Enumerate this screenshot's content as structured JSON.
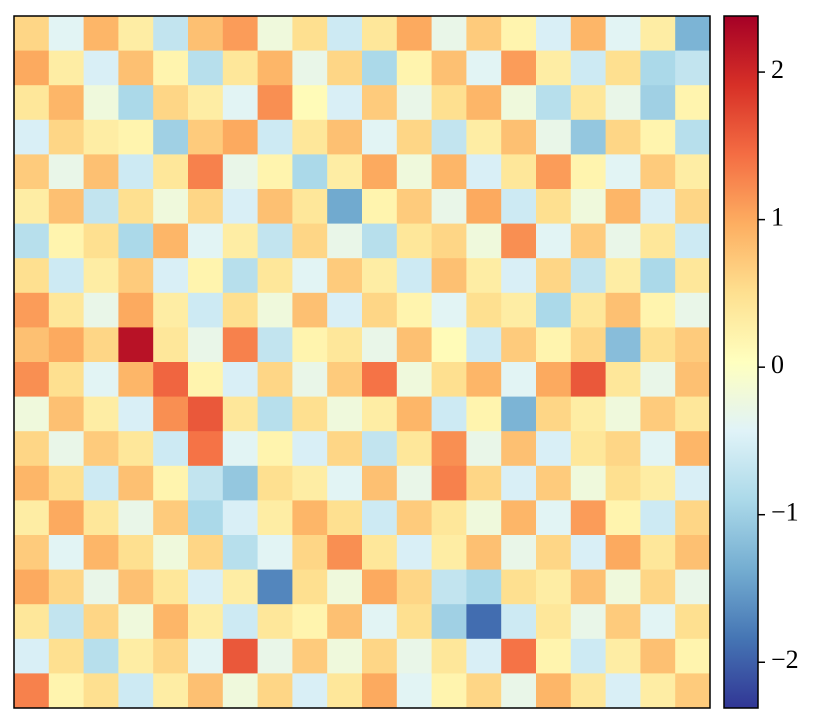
{
  "chart_data": {
    "type": "heatmap",
    "colormap": [
      "#313695",
      "#4575b4",
      "#74add1",
      "#abd9e9",
      "#e0f3f8",
      "#ffffbf",
      "#fee090",
      "#fdae61",
      "#f46d43",
      "#d73027",
      "#a50026"
    ],
    "clim": [
      -2.31,
      2.38
    ],
    "cticks": [
      {
        "value": -2,
        "label": "−2"
      },
      {
        "value": -1,
        "label": "−1"
      },
      0,
      1,
      2
    ],
    "values": [
      [
        0.6,
        -0.4,
        0.9,
        0.3,
        -0.7,
        0.8,
        1.1,
        -0.2,
        0.5,
        -0.6,
        0.4,
        1.0,
        -0.3,
        0.7,
        0.2,
        -0.5,
        0.9,
        -0.4,
        0.3,
        -1.3
      ],
      [
        1.0,
        0.3,
        -0.5,
        0.8,
        0.2,
        -0.8,
        0.4,
        0.9,
        -0.3,
        0.6,
        -0.9,
        0.2,
        0.8,
        -0.4,
        1.1,
        0.3,
        -0.6,
        0.5,
        -0.9,
        -0.7
      ],
      [
        0.4,
        0.9,
        -0.2,
        -0.9,
        0.6,
        0.3,
        -0.4,
        1.2,
        0.1,
        -0.5,
        0.7,
        -0.3,
        0.5,
        0.9,
        -0.2,
        -0.8,
        0.4,
        -0.3,
        -1.0,
        0.2
      ],
      [
        -0.5,
        0.6,
        0.3,
        0.2,
        -1.0,
        0.7,
        1.0,
        -0.6,
        0.4,
        0.8,
        -0.4,
        0.6,
        -0.7,
        0.3,
        0.8,
        -0.3,
        -1.1,
        0.6,
        0.2,
        -0.8
      ],
      [
        0.7,
        -0.3,
        0.8,
        -0.6,
        0.4,
        1.3,
        -0.3,
        0.2,
        -0.9,
        0.3,
        1.0,
        -0.2,
        0.9,
        -0.5,
        0.4,
        1.1,
        0.2,
        -0.4,
        0.7,
        0.3
      ],
      [
        0.3,
        0.8,
        -0.7,
        0.5,
        -0.2,
        0.6,
        -0.5,
        0.8,
        0.4,
        -1.4,
        0.2,
        0.7,
        -0.3,
        1.0,
        -0.6,
        0.5,
        -0.2,
        0.9,
        -0.5,
        0.6
      ],
      [
        -0.8,
        0.2,
        0.5,
        -0.9,
        0.9,
        -0.4,
        0.3,
        -0.7,
        0.6,
        -0.3,
        -0.8,
        0.4,
        0.6,
        -0.2,
        1.2,
        -0.4,
        0.7,
        -0.3,
        0.4,
        -0.6
      ],
      [
        0.5,
        -0.6,
        0.3,
        0.7,
        -0.5,
        0.2,
        -0.8,
        0.4,
        -0.4,
        0.7,
        0.3,
        -0.6,
        0.8,
        0.3,
        -0.5,
        0.6,
        -0.7,
        0.3,
        -0.9,
        0.4
      ],
      [
        1.1,
        0.4,
        -0.3,
        1.0,
        0.3,
        -0.6,
        0.5,
        -0.2,
        0.8,
        -0.5,
        0.6,
        0.2,
        -0.4,
        0.5,
        0.3,
        -0.9,
        0.4,
        0.8,
        0.2,
        -0.3
      ],
      [
        0.8,
        1.0,
        0.6,
        2.2,
        0.4,
        -0.3,
        1.3,
        -0.7,
        0.2,
        0.4,
        -0.3,
        0.8,
        0.1,
        -0.6,
        0.7,
        0.2,
        0.6,
        -1.2,
        0.5,
        0.7
      ],
      [
        1.2,
        0.5,
        -0.4,
        0.9,
        1.5,
        0.2,
        -0.5,
        0.6,
        -0.3,
        0.7,
        1.4,
        -0.2,
        0.5,
        0.9,
        -0.4,
        1.0,
        1.6,
        0.4,
        -0.3,
        0.8
      ],
      [
        -0.2,
        0.8,
        0.3,
        -0.5,
        1.2,
        1.6,
        0.4,
        -0.8,
        0.5,
        -0.2,
        0.3,
        0.9,
        -0.6,
        0.2,
        -1.3,
        0.6,
        0.3,
        -0.2,
        0.7,
        0.4
      ],
      [
        0.6,
        -0.3,
        0.7,
        0.4,
        -0.6,
        1.4,
        -0.4,
        0.2,
        -0.5,
        0.6,
        -0.7,
        0.4,
        1.2,
        -0.3,
        0.8,
        -0.5,
        0.4,
        0.6,
        -0.4,
        0.9
      ],
      [
        0.9,
        0.5,
        -0.6,
        0.8,
        0.2,
        -0.7,
        -1.1,
        0.5,
        0.3,
        -0.4,
        0.8,
        -0.3,
        1.3,
        0.6,
        -0.5,
        0.7,
        -0.2,
        0.5,
        0.3,
        -0.5
      ],
      [
        0.3,
        1.0,
        0.4,
        -0.3,
        0.7,
        -0.9,
        -0.5,
        0.3,
        0.9,
        0.5,
        -0.6,
        0.7,
        0.4,
        -0.2,
        0.9,
        -0.4,
        1.1,
        0.2,
        -0.6,
        0.6
      ],
      [
        0.7,
        -0.4,
        0.9,
        0.5,
        -0.2,
        0.6,
        -0.8,
        -0.4,
        0.6,
        1.2,
        0.4,
        -0.5,
        0.3,
        0.8,
        -0.3,
        0.6,
        -0.5,
        1.0,
        0.4,
        0.8
      ],
      [
        1.0,
        0.6,
        -0.3,
        0.8,
        0.4,
        -0.5,
        0.3,
        -1.7,
        0.5,
        -0.2,
        1.0,
        0.6,
        -0.7,
        -0.9,
        0.5,
        0.3,
        0.8,
        -0.2,
        0.6,
        -0.3
      ],
      [
        0.4,
        -0.7,
        0.6,
        -0.2,
        0.9,
        0.3,
        -0.6,
        0.4,
        0.2,
        0.8,
        -0.4,
        0.5,
        -1.0,
        -1.9,
        -0.6,
        0.4,
        -0.3,
        0.7,
        -0.4,
        0.5
      ],
      [
        -0.5,
        0.5,
        -0.8,
        0.3,
        0.6,
        -0.4,
        1.6,
        -0.3,
        0.7,
        -0.2,
        0.6,
        -0.3,
        0.4,
        -0.5,
        1.4,
        0.2,
        -0.6,
        0.3,
        0.8,
        0.2
      ],
      [
        1.3,
        0.2,
        0.5,
        -0.6,
        0.3,
        0.8,
        -0.2,
        0.6,
        -0.5,
        0.4,
        1.0,
        -0.4,
        0.2,
        0.6,
        -0.3,
        0.9,
        0.4,
        -0.5,
        0.3,
        0.7
      ]
    ]
  }
}
